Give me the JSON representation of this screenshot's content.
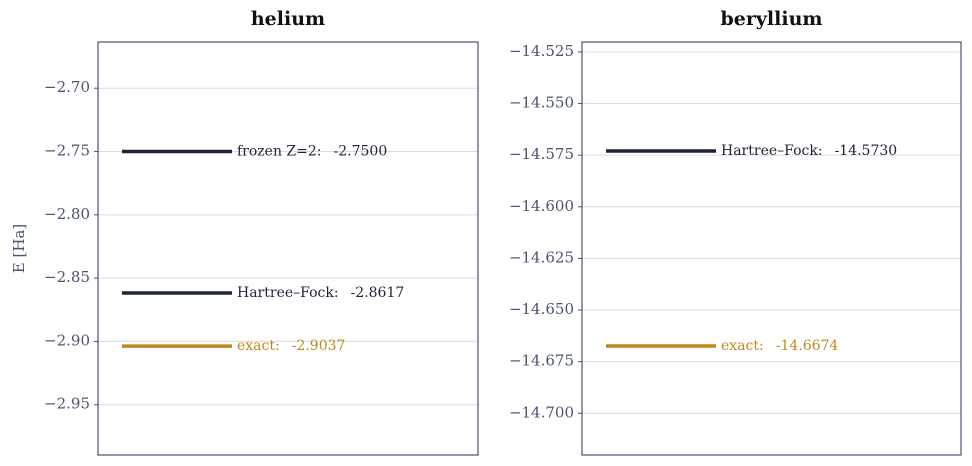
{
  "chart_data": [
    {
      "type": "level",
      "title": "helium",
      "ylabel": "E  [Ha]",
      "ylim": [
        -2.9897,
        -2.6635
      ],
      "yticks": [
        {
          "value": -2.7,
          "label": "−2.70"
        },
        {
          "value": -2.75,
          "label": "−2.75"
        },
        {
          "value": -2.8,
          "label": "−2.80"
        },
        {
          "value": -2.85,
          "label": "−2.85"
        },
        {
          "value": -2.9,
          "label": "−2.90"
        },
        {
          "value": -2.95,
          "label": "−2.95"
        }
      ],
      "grid": true,
      "series": [
        {
          "name": "frozen Z=2:",
          "color": "#1c2436",
          "values": [
            -2.75
          ],
          "value_labels": [
            "-2.7500"
          ]
        },
        {
          "name": "Hartree–Fock:",
          "color": "#1c2436",
          "values": [
            -2.8617
          ],
          "value_labels": [
            "-2.8617"
          ]
        },
        {
          "name": "exact:",
          "color": "#c0881f",
          "values": [
            -2.9037
          ],
          "value_labels": [
            "-2.9037"
          ]
        }
      ]
    },
    {
      "type": "level",
      "title": "beryllium",
      "ylim": [
        -14.7202,
        -14.5202
      ],
      "yticks": [
        {
          "value": -14.525,
          "label": "−14.525"
        },
        {
          "value": -14.55,
          "label": "−14.550"
        },
        {
          "value": -14.575,
          "label": "−14.575"
        },
        {
          "value": -14.6,
          "label": "−14.600"
        },
        {
          "value": -14.625,
          "label": "−14.625"
        },
        {
          "value": -14.65,
          "label": "−14.650"
        },
        {
          "value": -14.675,
          "label": "−14.675"
        },
        {
          "value": -14.7,
          "label": "−14.700"
        }
      ],
      "grid": true,
      "series": [
        {
          "name": "Hartree–Fock:",
          "color": "#1c2436",
          "values": [
            -14.573
          ],
          "value_labels": [
            "-14.5730"
          ]
        },
        {
          "name": "exact:",
          "color": "#c0881f",
          "values": [
            -14.6674
          ],
          "value_labels": [
            "-14.6674"
          ]
        }
      ]
    }
  ]
}
